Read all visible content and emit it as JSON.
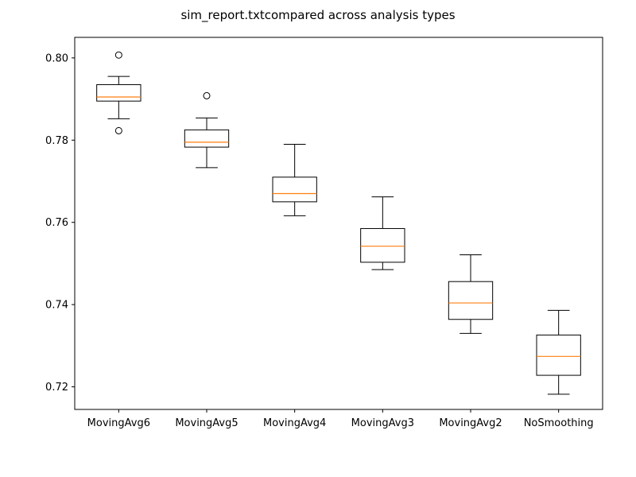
{
  "chart_data": {
    "type": "box",
    "title": "sim_report.txtcompared across analysis types",
    "xlabel": "",
    "ylabel": "",
    "ylim": [
      0.7145,
      0.805
    ],
    "yticks": [
      "0.72",
      "0.74",
      "0.76",
      "0.78",
      "0.80"
    ],
    "grid": false,
    "colors": {
      "box": "#000000",
      "median": "#ff7f0e",
      "background": "#ffffff"
    },
    "categories": [
      "MovingAvg6",
      "MovingAvg5",
      "MovingAvg4",
      "MovingAvg3",
      "MovingAvg2",
      "NoSmoothing"
    ],
    "boxes": [
      {
        "whisker_low": 0.7852,
        "q1": 0.7895,
        "median": 0.7905,
        "q3": 0.7935,
        "whisker_high": 0.7955,
        "outliers": [
          0.8007,
          0.7823
        ]
      },
      {
        "whisker_low": 0.7733,
        "q1": 0.7783,
        "median": 0.7795,
        "q3": 0.7825,
        "whisker_high": 0.7854,
        "outliers": [
          0.7908
        ]
      },
      {
        "whisker_low": 0.7616,
        "q1": 0.765,
        "median": 0.767,
        "q3": 0.771,
        "whisker_high": 0.779,
        "outliers": []
      },
      {
        "whisker_low": 0.7485,
        "q1": 0.7503,
        "median": 0.7542,
        "q3": 0.7585,
        "whisker_high": 0.7662,
        "outliers": []
      },
      {
        "whisker_low": 0.733,
        "q1": 0.7364,
        "median": 0.7404,
        "q3": 0.7456,
        "whisker_high": 0.7521,
        "outliers": []
      },
      {
        "whisker_low": 0.7182,
        "q1": 0.7228,
        "median": 0.7274,
        "q3": 0.7326,
        "whisker_high": 0.7386,
        "outliers": []
      }
    ]
  }
}
